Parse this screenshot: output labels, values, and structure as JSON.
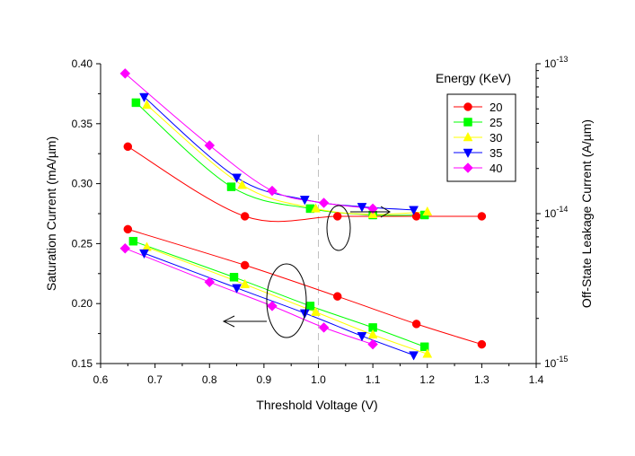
{
  "chart_data": {
    "type": "line",
    "xlabel": "Threshold Voltage (V)",
    "ylabel": "Saturation Current (mA/µm)",
    "y2label": "Off-State Leakage Current (A/µm)",
    "xlim": [
      0.6,
      1.4
    ],
    "ylim": [
      0.15,
      0.4
    ],
    "y2lim": [
      1e-15,
      1e-13
    ],
    "y2scale": "log",
    "xticks": [
      "0.6",
      "0.7",
      "0.8",
      "0.9",
      "1.0",
      "1.1",
      "1.2",
      "1.3",
      "1.4"
    ],
    "yticks": [
      "0.15",
      "0.20",
      "0.25",
      "0.30",
      "0.35",
      "0.40"
    ],
    "y2ticks": [
      {
        "base": "10",
        "exp": "-15"
      },
      {
        "base": "10",
        "exp": "-14"
      },
      {
        "base": "10",
        "exp": "-13"
      }
    ],
    "legend_title": "Energy (KeV)",
    "legend_position": "top-right",
    "reference_line_x": 1.0,
    "series": [
      {
        "name": "20",
        "color": "#ff0000",
        "marker": "circle",
        "saturation": [
          [
            0.65,
            0.262
          ],
          [
            0.865,
            0.232
          ],
          [
            1.035,
            0.206
          ],
          [
            1.18,
            0.183
          ],
          [
            1.3,
            0.166
          ]
        ],
        "leakage": [
          [
            0.65,
            2.8e-14
          ],
          [
            0.865,
            9.6e-15
          ],
          [
            1.035,
            9.6e-15
          ],
          [
            1.18,
            9.6e-15
          ],
          [
            1.3,
            9.6e-15
          ]
        ]
      },
      {
        "name": "25",
        "color": "#00ff00",
        "marker": "square",
        "saturation": [
          [
            0.66,
            0.252
          ],
          [
            0.845,
            0.222
          ],
          [
            0.985,
            0.198
          ],
          [
            1.1,
            0.18
          ],
          [
            1.195,
            0.164
          ]
        ],
        "leakage": [
          [
            0.665,
            5.5e-14
          ],
          [
            0.84,
            1.51e-14
          ],
          [
            0.985,
            1.08e-14
          ],
          [
            1.1,
            9.8e-15
          ],
          [
            1.195,
            9.8e-15
          ]
        ]
      },
      {
        "name": "30",
        "color": "#ffff00",
        "marker": "triangle-up",
        "saturation": [
          [
            0.685,
            0.247
          ],
          [
            0.865,
            0.216
          ],
          [
            0.995,
            0.193
          ],
          [
            1.1,
            0.174
          ],
          [
            1.2,
            0.158
          ]
        ],
        "leakage": [
          [
            0.685,
            5.3e-14
          ],
          [
            0.86,
            1.55e-14
          ],
          [
            0.995,
            1.08e-14
          ],
          [
            1.1,
            9.9e-15
          ],
          [
            1.2,
            1.03e-14
          ]
        ]
      },
      {
        "name": "35",
        "color": "#0000ff",
        "marker": "triangle-down",
        "saturation": [
          [
            0.68,
            0.242
          ],
          [
            0.85,
            0.213
          ],
          [
            0.975,
            0.192
          ],
          [
            1.08,
            0.173
          ],
          [
            1.175,
            0.157
          ]
        ],
        "leakage": [
          [
            0.68,
            6e-14
          ],
          [
            0.85,
            1.74e-14
          ],
          [
            0.975,
            1.24e-14
          ],
          [
            1.08,
            1.11e-14
          ],
          [
            1.175,
            1.06e-14
          ]
        ]
      },
      {
        "name": "40",
        "color": "#ff00ff",
        "marker": "diamond",
        "saturation": [
          [
            0.645,
            0.246
          ],
          [
            0.8,
            0.218
          ],
          [
            0.915,
            0.198
          ],
          [
            1.01,
            0.18
          ],
          [
            1.1,
            0.166
          ]
        ],
        "leakage": [
          [
            0.645,
            8.6e-14
          ],
          [
            0.8,
            2.85e-14
          ],
          [
            0.915,
            1.42e-14
          ],
          [
            1.01,
            1.18e-14
          ],
          [
            1.1,
            1.08e-14
          ]
        ]
      }
    ]
  }
}
